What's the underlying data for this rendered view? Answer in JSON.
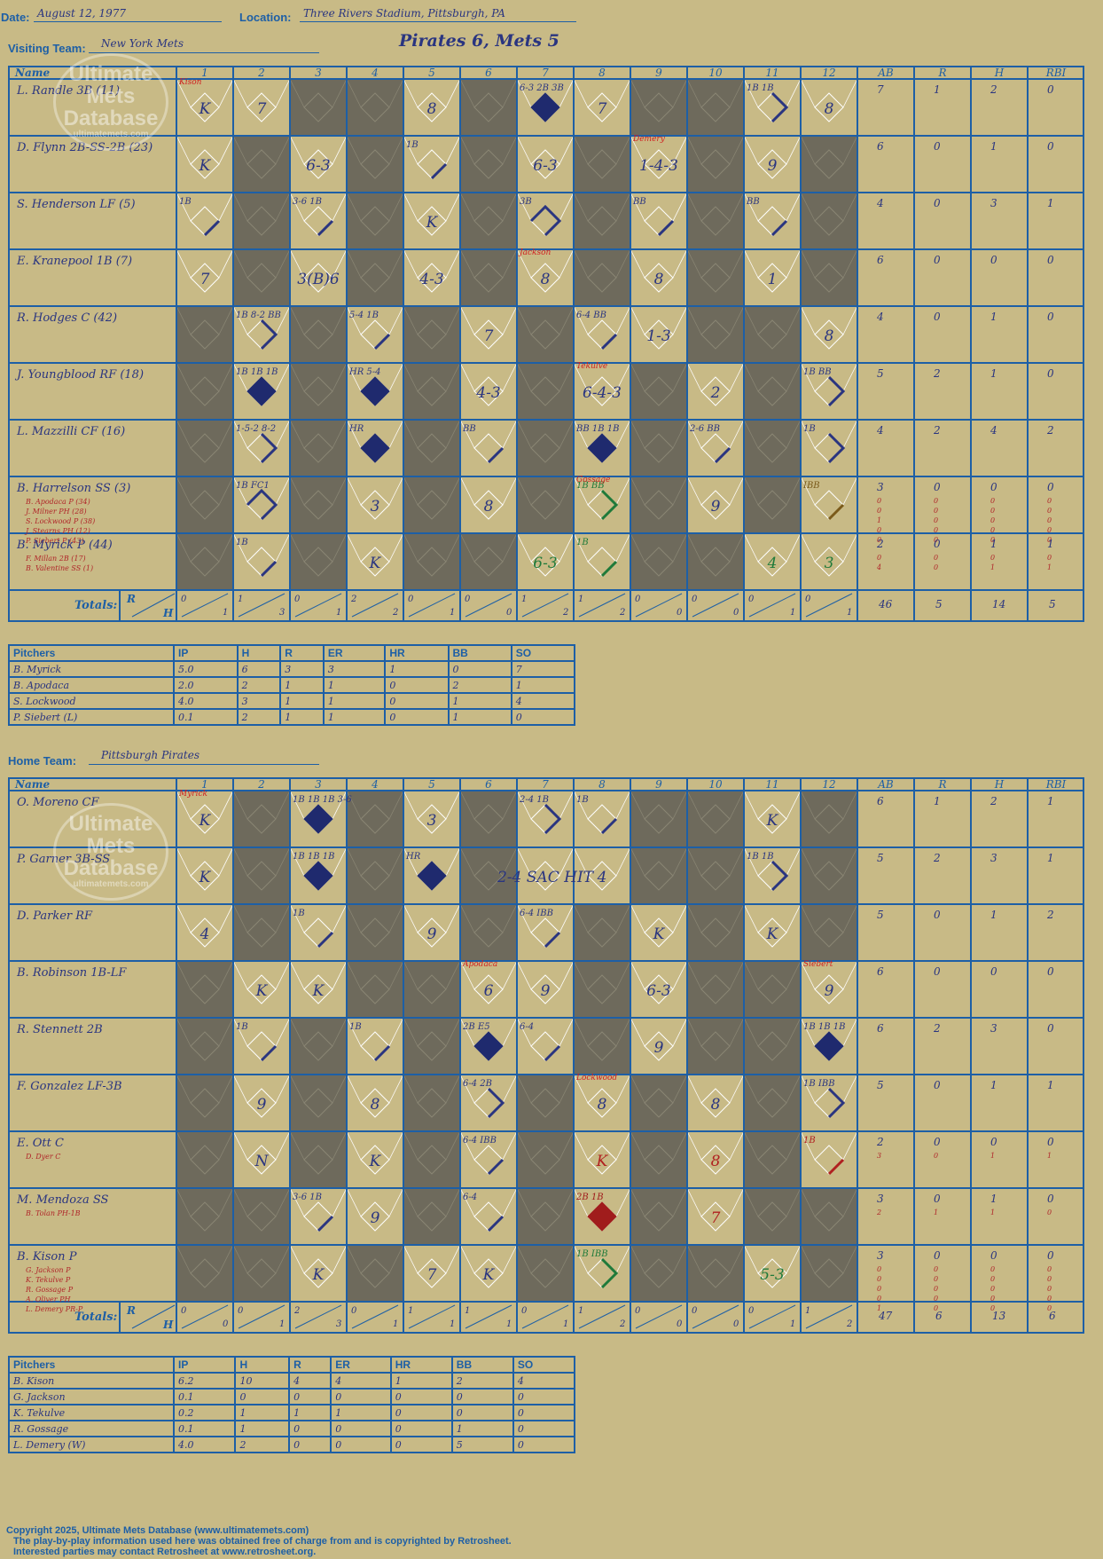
{
  "game": {
    "date_label": "Date:",
    "date": "August 12, 1977",
    "location_label": "Location:",
    "location": "Three Rivers Stadium, Pittsburgh, PA",
    "title": "Pirates 6, Mets 5",
    "logo": [
      "Ultimate",
      "Mets",
      "Database"
    ],
    "logo_url": "ultimatemets.com"
  },
  "columns": {
    "name": "Name",
    "innings": [
      "1",
      "2",
      "3",
      "4",
      "5",
      "6",
      "7",
      "8",
      "9",
      "10",
      "11",
      "12"
    ],
    "stats": [
      "AB",
      "R",
      "H",
      "RBI"
    ],
    "totals_label": "Totals:",
    "r_label": "R",
    "h_label": "H"
  },
  "visitors": {
    "team_label": "Visiting Team:",
    "team": "New York Mets",
    "batters": [
      {
        "name": "L. Randle 3B (11)",
        "subs": [],
        "stats": [
          [
            "7",
            "1",
            "2",
            "0"
          ]
        ]
      },
      {
        "name": "D. Flynn 2B-SS-2B (23)",
        "subs": [],
        "stats": [
          [
            "6",
            "0",
            "1",
            "0"
          ]
        ]
      },
      {
        "name": "S. Henderson LF (5)",
        "subs": [],
        "stats": [
          [
            "4",
            "0",
            "3",
            "1"
          ]
        ]
      },
      {
        "name": "E. Kranepool 1B (7)",
        "subs": [],
        "stats": [
          [
            "6",
            "0",
            "0",
            "0"
          ]
        ]
      },
      {
        "name": "R. Hodges C (42)",
        "subs": [],
        "stats": [
          [
            "4",
            "0",
            "1",
            "0"
          ]
        ]
      },
      {
        "name": "J. Youngblood RF (18)",
        "subs": [],
        "stats": [
          [
            "5",
            "2",
            "1",
            "0"
          ]
        ]
      },
      {
        "name": "L. Mazzilli CF (16)",
        "subs": [],
        "stats": [
          [
            "4",
            "2",
            "4",
            "2"
          ]
        ]
      },
      {
        "name": "B. Harrelson SS (3)",
        "subs": [
          "B. Apodaca P (34)",
          "J. Milner PH (28)",
          "S. Lockwood P (38)",
          "J. Stearns PH (12)",
          "P. Siebert P (43)"
        ],
        "stats": [
          [
            "3",
            "0",
            "0",
            "0"
          ],
          [
            "0",
            "0",
            "0",
            "0"
          ],
          [
            "0",
            "0",
            "0",
            "0"
          ],
          [
            "1",
            "0",
            "0",
            "0"
          ],
          [
            "0",
            "0",
            "0",
            "0"
          ],
          [
            "0",
            "0",
            "0",
            "0"
          ]
        ]
      },
      {
        "name": "B. Myrick P (44)",
        "subs": [
          "F. Millan 2B (17)",
          "B. Valentine SS (1)"
        ],
        "stats": [
          [
            "2",
            "0",
            "1",
            "1"
          ],
          [
            "0",
            "0",
            "0",
            "0"
          ],
          [
            "4",
            "0",
            "1",
            "1"
          ]
        ]
      }
    ],
    "totals_by_inning": [
      [
        "0",
        "1"
      ],
      [
        "1",
        "3"
      ],
      [
        "0",
        "1"
      ],
      [
        "2",
        "2"
      ],
      [
        "0",
        "1"
      ],
      [
        "0",
        "0"
      ],
      [
        "1",
        "2"
      ],
      [
        "1",
        "2"
      ],
      [
        "0",
        "0"
      ],
      [
        "0",
        "0"
      ],
      [
        "0",
        "1"
      ],
      [
        "0",
        "1"
      ]
    ],
    "totals": [
      "46",
      "5",
      "14",
      "5"
    ],
    "pitchers_header": [
      "Pitchers",
      "IP",
      "H",
      "R",
      "ER",
      "HR",
      "BB",
      "SO"
    ],
    "pitchers": [
      [
        "B. Myrick",
        "5.0",
        "6",
        "3",
        "3",
        "1",
        "0",
        "7"
      ],
      [
        "B. Apodaca",
        "2.0",
        "2",
        "1",
        "1",
        "0",
        "2",
        "1"
      ],
      [
        "S. Lockwood",
        "4.0",
        "3",
        "1",
        "1",
        "0",
        "1",
        "4"
      ],
      [
        "P. Siebert (L)",
        "0.1",
        "2",
        "1",
        "1",
        "0",
        "1",
        "0"
      ]
    ]
  },
  "home": {
    "team_label": "Home Team:",
    "team": "Pittsburgh Pirates",
    "batters": [
      {
        "name": "O. Moreno CF",
        "subs": [],
        "stats": [
          [
            "6",
            "1",
            "2",
            "1"
          ]
        ]
      },
      {
        "name": "P. Garner 3B-SS",
        "subs": [],
        "stats": [
          [
            "5",
            "2",
            "3",
            "1"
          ]
        ]
      },
      {
        "name": "D. Parker RF",
        "subs": [],
        "stats": [
          [
            "5",
            "0",
            "1",
            "2"
          ]
        ]
      },
      {
        "name": "B. Robinson 1B-LF",
        "subs": [],
        "stats": [
          [
            "6",
            "0",
            "0",
            "0"
          ]
        ]
      },
      {
        "name": "R. Stennett 2B",
        "subs": [],
        "stats": [
          [
            "6",
            "2",
            "3",
            "0"
          ]
        ]
      },
      {
        "name": "F. Gonzalez LF-3B",
        "subs": [],
        "stats": [
          [
            "5",
            "0",
            "1",
            "1"
          ]
        ]
      },
      {
        "name": "E. Ott C",
        "subs": [
          "D. Dyer C"
        ],
        "stats": [
          [
            "2",
            "0",
            "0",
            "0"
          ],
          [
            "3",
            "0",
            "1",
            "1"
          ]
        ]
      },
      {
        "name": "M. Mendoza SS",
        "subs": [
          "B. Tolan PH-1B"
        ],
        "stats": [
          [
            "3",
            "0",
            "1",
            "0"
          ],
          [
            "2",
            "1",
            "1",
            "0"
          ]
        ]
      },
      {
        "name": "B. Kison P",
        "subs": [
          "G. Jackson P",
          "K. Tekulve P",
          "R. Gossage P",
          "A. Oliver PH",
          "L. Demery PR-P"
        ],
        "stats": [
          [
            "3",
            "0",
            "0",
            "0"
          ],
          [
            "0",
            "0",
            "0",
            "0"
          ],
          [
            "0",
            "0",
            "0",
            "0"
          ],
          [
            "0",
            "0",
            "0",
            "0"
          ],
          [
            "0",
            "0",
            "0",
            "0"
          ],
          [
            "1",
            "0",
            "0",
            "0"
          ]
        ]
      }
    ],
    "totals_by_inning": [
      [
        "0",
        "0"
      ],
      [
        "0",
        "1"
      ],
      [
        "2",
        "3"
      ],
      [
        "0",
        "1"
      ],
      [
        "1",
        "1"
      ],
      [
        "1",
        "1"
      ],
      [
        "0",
        "1"
      ],
      [
        "1",
        "2"
      ],
      [
        "0",
        "0"
      ],
      [
        "0",
        "0"
      ],
      [
        "0",
        "1"
      ],
      [
        "1",
        "2"
      ]
    ],
    "totals": [
      "47",
      "6",
      "13",
      "6"
    ],
    "pitchers_header": [
      "Pitchers",
      "IP",
      "H",
      "R",
      "ER",
      "HR",
      "BB",
      "SO"
    ],
    "pitchers": [
      [
        "B. Kison",
        "6.2",
        "10",
        "4",
        "4",
        "1",
        "2",
        "4"
      ],
      [
        "G. Jackson",
        "0.1",
        "0",
        "0",
        "0",
        "0",
        "0",
        "0"
      ],
      [
        "K. Tekulve",
        "0.2",
        "1",
        "1",
        "1",
        "0",
        "0",
        "0"
      ],
      [
        "R. Gossage",
        "0.1",
        "1",
        "0",
        "0",
        "0",
        "1",
        "0"
      ],
      [
        "L. Demery (W)",
        "4.0",
        "2",
        "0",
        "0",
        "0",
        "5",
        "0"
      ]
    ]
  },
  "plays": {
    "visitors": [
      [
        {
          "i": 1,
          "t": "K",
          "a": "Kison"
        },
        {
          "i": 2,
          "t": "7"
        },
        {
          "i": 5,
          "t": "8"
        },
        {
          "i": 7,
          "t": "6-3 2B 3B",
          "score": true
        },
        {
          "i": 8,
          "t": "7"
        },
        {
          "i": 11,
          "t": "1B 1B",
          "path": 2
        },
        {
          "i": 12,
          "t": "8"
        }
      ],
      [
        {
          "i": 1,
          "t": "K"
        },
        {
          "i": 3,
          "t": "6-3"
        },
        {
          "i": 5,
          "t": "1B",
          "path": 1
        },
        {
          "i": 7,
          "t": "6-3"
        },
        {
          "i": 9,
          "t": "1-4-3",
          "a": "Demery"
        },
        {
          "i": 11,
          "t": "9"
        }
      ],
      [
        {
          "i": 1,
          "t": "1B",
          "path": 1
        },
        {
          "i": 3,
          "t": "3-6 1B",
          "path": 1
        },
        {
          "i": 5,
          "t": "K"
        },
        {
          "i": 7,
          "t": "3B",
          "path": 3
        },
        {
          "i": 9,
          "t": "BB",
          "path": 1
        },
        {
          "i": 11,
          "t": "BB",
          "path": 1
        }
      ],
      [
        {
          "i": 1,
          "t": "7"
        },
        {
          "i": 3,
          "t": "3(B)6"
        },
        {
          "i": 5,
          "t": "4-3"
        },
        {
          "i": 7,
          "t": "8",
          "a": "Jackson"
        },
        {
          "i": 9,
          "t": "8"
        },
        {
          "i": 11,
          "t": "1"
        }
      ],
      [
        {
          "i": 2,
          "t": "1B 8-2 BB",
          "path": 2
        },
        {
          "i": 4,
          "t": "5-4 1B",
          "path": 1
        },
        {
          "i": 6,
          "t": "7"
        },
        {
          "i": 8,
          "t": "6-4 BB",
          "path": 1
        },
        {
          "i": 9,
          "t": "1-3"
        },
        {
          "i": 12,
          "t": "8"
        }
      ],
      [
        {
          "i": 2,
          "t": "1B 1B 1B",
          "score": true
        },
        {
          "i": 4,
          "t": "HR 5-4",
          "score": true
        },
        {
          "i": 6,
          "t": "4-3"
        },
        {
          "i": 8,
          "t": "6-4-3",
          "a": "Tekulve"
        },
        {
          "i": 10,
          "t": "2"
        },
        {
          "i": 12,
          "t": "1B BB",
          "path": 2
        }
      ],
      [
        {
          "i": 2,
          "t": "1-5-2 8-2",
          "path": 2
        },
        {
          "i": 4,
          "t": "HR",
          "score": true
        },
        {
          "i": 6,
          "t": "BB",
          "path": 1
        },
        {
          "i": 8,
          "t": "BB 1B 1B",
          "score": true
        },
        {
          "i": 10,
          "t": "2-6 BB",
          "path": 1
        },
        {
          "i": 12,
          "t": "1B",
          "path": 2
        }
      ],
      [
        {
          "i": 2,
          "t": "1B FC1",
          "path": 3
        },
        {
          "i": 4,
          "t": "3"
        },
        {
          "i": 6,
          "t": "8"
        },
        {
          "i": 8,
          "t": "1B BB",
          "path": 2,
          "a": "Gossage",
          "c": "#1f7a3a"
        },
        {
          "i": 10,
          "t": "9"
        },
        {
          "i": 12,
          "t": "IBB",
          "path": 1,
          "c": "#7a5a1a"
        }
      ],
      [
        {
          "i": 2,
          "t": "1B",
          "path": 1
        },
        {
          "i": 4,
          "t": "K"
        },
        {
          "i": 7,
          "t": "6-3",
          "c": "#1f7a3a"
        },
        {
          "i": 8,
          "t": "1B",
          "path": 1,
          "c": "#1f7a3a"
        },
        {
          "i": 11,
          "t": "4",
          "c": "#1f7a3a"
        },
        {
          "i": 12,
          "t": "3",
          "c": "#1f7a3a"
        }
      ]
    ],
    "home": [
      [
        {
          "i": 1,
          "t": "K",
          "a": "Myrick"
        },
        {
          "i": 3,
          "t": "1B 1B 1B 3-6",
          "score": true
        },
        {
          "i": 5,
          "t": "3"
        },
        {
          "i": 7,
          "t": "2-4 1B",
          "path": 2
        },
        {
          "i": 8,
          "t": "1B",
          "path": 1
        },
        {
          "i": 11,
          "t": "K"
        }
      ],
      [
        {
          "i": 1,
          "t": "K"
        },
        {
          "i": 3,
          "t": "1B 1B 1B",
          "score": true
        },
        {
          "i": 5,
          "t": "HR",
          "score": true
        },
        {
          "i": 7,
          "t": "2-4 SAC HIT"
        },
        {
          "i": 8,
          "t": "4"
        },
        {
          "i": 11,
          "t": "1B 1B",
          "path": 2
        }
      ],
      [
        {
          "i": 1,
          "t": "4"
        },
        {
          "i": 3,
          "t": "1B",
          "path": 1
        },
        {
          "i": 5,
          "t": "9"
        },
        {
          "i": 7,
          "t": "6-4 IBB",
          "path": 1
        },
        {
          "i": 9,
          "t": "K"
        },
        {
          "i": 11,
          "t": "K"
        }
      ],
      [
        {
          "i": 2,
          "t": "K"
        },
        {
          "i": 3,
          "t": "K"
        },
        {
          "i": 6,
          "t": "6",
          "a": "Apodaca"
        },
        {
          "i": 7,
          "t": "9"
        },
        {
          "i": 9,
          "t": "6-3"
        },
        {
          "i": 12,
          "t": "9",
          "a": "Siebert"
        }
      ],
      [
        {
          "i": 2,
          "t": "1B",
          "path": 1
        },
        {
          "i": 4,
          "t": "1B",
          "path": 1
        },
        {
          "i": 6,
          "t": "2B E5",
          "score": true
        },
        {
          "i": 7,
          "t": "6-4",
          "path": 1
        },
        {
          "i": 9,
          "t": "9"
        },
        {
          "i": 12,
          "t": "1B 1B 1B",
          "score": true
        }
      ],
      [
        {
          "i": 2,
          "t": "9"
        },
        {
          "i": 4,
          "t": "8"
        },
        {
          "i": 6,
          "t": "6-4 2B",
          "path": 2
        },
        {
          "i": 8,
          "t": "8",
          "a": "Lockwood"
        },
        {
          "i": 10,
          "t": "8"
        },
        {
          "i": 12,
          "t": "1B IBB",
          "path": 2
        }
      ],
      [
        {
          "i": 2,
          "t": "N"
        },
        {
          "i": 4,
          "t": "K"
        },
        {
          "i": 6,
          "t": "6-4 IBB",
          "path": 1
        },
        {
          "i": 8,
          "t": "K",
          "c": "#b02020"
        },
        {
          "i": 10,
          "t": "8",
          "c": "#b02020"
        },
        {
          "i": 12,
          "t": "1B",
          "path": 1,
          "c": "#b02020"
        }
      ],
      [
        {
          "i": 3,
          "t": "3-6 1B",
          "path": 1
        },
        {
          "i": 4,
          "t": "9"
        },
        {
          "i": 6,
          "t": "6-4",
          "path": 1
        },
        {
          "i": 8,
          "t": "2B 1B",
          "score": true,
          "c": "#a01c1c"
        },
        {
          "i": 10,
          "t": "7",
          "c": "#b02020"
        }
      ],
      [
        {
          "i": 3,
          "t": "K"
        },
        {
          "i": 5,
          "t": "7"
        },
        {
          "i": 6,
          "t": "K"
        },
        {
          "i": 8,
          "t": "1B IBB",
          "path": 2,
          "c": "#1f7a3a"
        },
        {
          "i": 11,
          "t": "5-3",
          "c": "#1f7a3a"
        }
      ]
    ]
  },
  "footer": {
    "line1": "Copyright 2025, Ultimate Mets Database (www.ultimatemets.com)",
    "line2": "The play-by-play information used here was obtained free of charge from and is copyrighted by Retrosheet.",
    "line3": "Interested parties may contact Retrosheet at www.retrosheet.org."
  }
}
